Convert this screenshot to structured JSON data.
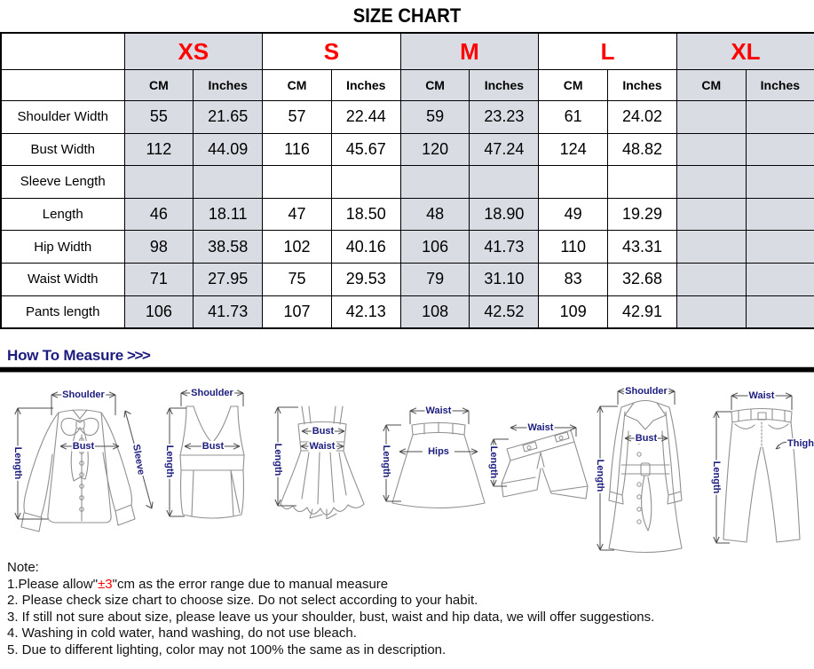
{
  "title": "SIZE CHART",
  "colors": {
    "accent_red": "#FF0000",
    "navy": "#1C1C7E",
    "shade": "#D9DDE3",
    "border": "#000000"
  },
  "table": {
    "sizes": [
      "XS",
      "S",
      "M",
      "L",
      "XL"
    ],
    "unit_headers": [
      "CM",
      "Inches"
    ],
    "rows": [
      {
        "label": "Shoulder Width",
        "values": [
          "55",
          "21.65",
          "57",
          "22.44",
          "59",
          "23.23",
          "61",
          "24.02",
          "",
          ""
        ]
      },
      {
        "label": "Bust Width",
        "values": [
          "112",
          "44.09",
          "116",
          "45.67",
          "120",
          "47.24",
          "124",
          "48.82",
          "",
          ""
        ]
      },
      {
        "label": "Sleeve Length",
        "values": [
          "",
          "",
          "",
          "",
          "",
          "",
          "",
          "",
          "",
          ""
        ]
      },
      {
        "label": "Length",
        "values": [
          "46",
          "18.11",
          "47",
          "18.50",
          "48",
          "18.90",
          "49",
          "19.29",
          "",
          ""
        ]
      },
      {
        "label": "Hip Width",
        "values": [
          "98",
          "38.58",
          "102",
          "40.16",
          "106",
          "41.73",
          "110",
          "43.31",
          "",
          ""
        ]
      },
      {
        "label": "Waist Width",
        "values": [
          "71",
          "27.95",
          "75",
          "29.53",
          "79",
          "31.10",
          "83",
          "32.68",
          "",
          ""
        ]
      },
      {
        "label": "Pants length",
        "values": [
          "106",
          "41.73",
          "107",
          "42.13",
          "108",
          "42.52",
          "109",
          "42.91",
          "",
          ""
        ]
      }
    ]
  },
  "how_to_measure": {
    "label": "How To Measure",
    "arrows": ">>>"
  },
  "figures": [
    {
      "name": "blouse",
      "labels": {
        "shoulder": "Shoulder",
        "bust": "Bust",
        "sleeve": "Sleeve",
        "length": "Length"
      }
    },
    {
      "name": "tank-top",
      "labels": {
        "shoulder": "Shoulder",
        "bust": "Bust",
        "length": "Length"
      }
    },
    {
      "name": "slip-dress",
      "labels": {
        "bust": "Bust",
        "waist": "Waist",
        "length": "Length"
      }
    },
    {
      "name": "skirt",
      "labels": {
        "waist": "Waist",
        "hips": "Hips",
        "length": "Length"
      }
    },
    {
      "name": "shorts",
      "labels": {
        "waist": "Waist",
        "length": "Length"
      }
    },
    {
      "name": "coat",
      "labels": {
        "shoulder": "Shoulder",
        "bust": "Bust",
        "length": "Length"
      }
    },
    {
      "name": "pants",
      "labels": {
        "waist": "Waist",
        "thigh": "Thigh",
        "length": "Length"
      }
    }
  ],
  "notes": {
    "heading": "Note:",
    "line1_prefix": "1.Please allow\"",
    "line1_red": "±3",
    "line1_suffix": "\"cm as the error range due to manual measure",
    "items": [
      "2. Please check size chart to choose size. Do not select according to your habit.",
      "3. If still not sure about size, please leave us your shoulder, bust, waist and hip data, we will offer suggestions.",
      "4. Washing in cold water, hand washing, do not use bleach.",
      "5. Due to different lighting, color may not 100% the same as in description."
    ]
  }
}
